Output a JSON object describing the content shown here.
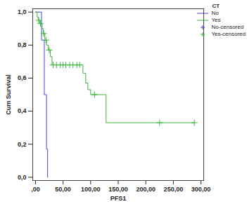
{
  "chart_data": {
    "type": "line",
    "x_label": "PFS1",
    "y_label": "Cum Survival",
    "xlim": [
      -5,
      305
    ],
    "ylim": [
      -0.02,
      1.02
    ],
    "xticks": [
      {
        "value": 0,
        "label": ",00"
      },
      {
        "value": 50,
        "label": "50,00"
      },
      {
        "value": 100,
        "label": "100,00"
      },
      {
        "value": 150,
        "label": "150,00"
      },
      {
        "value": 200,
        "label": "200,00"
      },
      {
        "value": 250,
        "label": "250,00"
      },
      {
        "value": 300,
        "label": "300,00"
      }
    ],
    "yticks": [
      {
        "value": 0,
        "label": "0,0"
      },
      {
        "value": 0.2,
        "label": "0,2"
      },
      {
        "value": 0.4,
        "label": "0,4"
      },
      {
        "value": 0.6,
        "label": "0,6"
      },
      {
        "value": 0.8,
        "label": "0,8"
      },
      {
        "value": 1,
        "label": "1,0"
      }
    ],
    "legend": "top-right",
    "legend_title": "CT",
    "series": [
      {
        "name": "No",
        "color": "#4646d2",
        "line_style": "step",
        "x": [
          0,
          11,
          16,
          20,
          22
        ],
        "values": [
          1,
          0.83,
          0.5,
          0.17,
          0
        ]
      },
      {
        "name": "Yes",
        "color": "#3cb43c",
        "line_style": "step",
        "x": [
          0,
          3,
          5,
          8,
          12,
          14,
          17,
          20,
          23,
          27,
          30,
          86,
          91,
          95,
          100,
          128,
          288
        ],
        "values": [
          1,
          0.97,
          0.95,
          0.93,
          0.9,
          0.87,
          0.83,
          0.8,
          0.77,
          0.73,
          0.68,
          0.63,
          0.57,
          0.53,
          0.5,
          0.33,
          0.33
        ]
      },
      {
        "name": "No-censored",
        "color": "#4646d2",
        "marker": "plus",
        "x": [],
        "values": []
      },
      {
        "name": "Yes-censored",
        "color": "#3cb43c",
        "marker": "plus",
        "x": [
          6,
          9,
          15,
          19,
          25,
          32,
          38,
          45,
          50,
          55,
          62,
          68,
          75,
          80,
          107,
          225,
          288
        ],
        "values": [
          0.95,
          0.93,
          0.87,
          0.83,
          0.77,
          0.68,
          0.68,
          0.68,
          0.68,
          0.68,
          0.68,
          0.68,
          0.68,
          0.68,
          0.5,
          0.33,
          0.33
        ]
      }
    ]
  }
}
